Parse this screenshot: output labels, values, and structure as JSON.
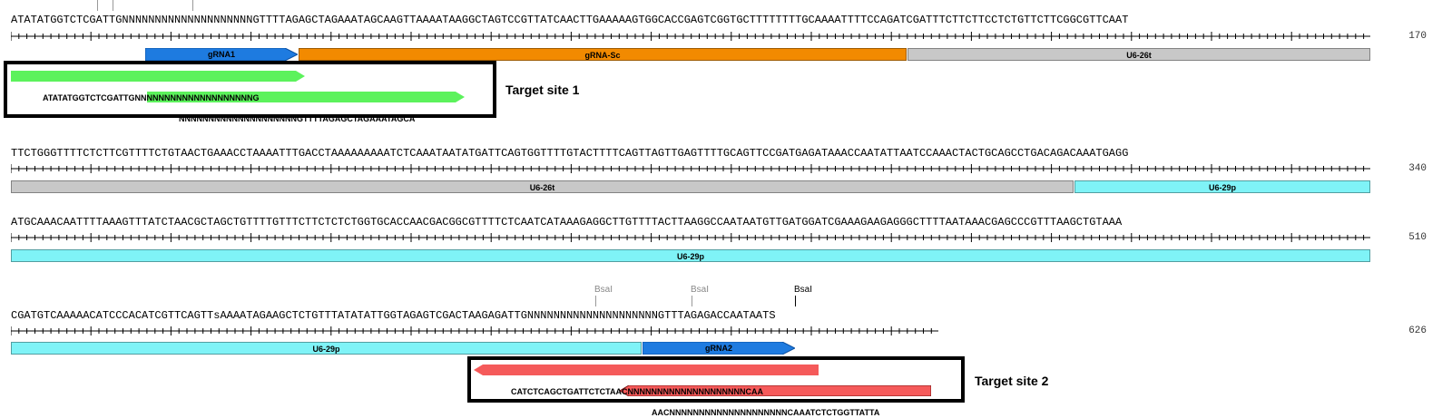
{
  "rows": [
    {
      "sequence": "ATATATGGTCTCGATTGNNNNNNNNNNNNNNNNNNNNGTTTTAGAGCTAGAAATAGCAAGTTAAAATAAGGCTAGTCCGTTATCAACTTGAAAAAGTGGCACCGAGTCGGTGCTTTTTTTTGCAAAATTTTCCAGATCGATTTCTTCTTCCTCTGTTCTTCGGCGTTCAAT",
      "position": "170",
      "features": [
        {
          "label": "gRNA1",
          "color": "#1e7be0"
        },
        {
          "label": "gRNA-Sc",
          "color": "#f28a00"
        },
        {
          "label": "U6-26t",
          "color": "#c8c8c8"
        }
      ]
    },
    {
      "sequence": "TTCTGGGTTTTCTCTTCGTTTTCTGTAACTGAAACCTAAAATTTGACCTAAAAAAAAATCTCAAATAATATGATTCAGTGGTTTTGTACTTTTCAGTTAGTTGAGTTTTGCAGTTCCGATGAGATAAACCAATATTAATCCAAACTACTGCAGCCTGACAGACAAATGAGG",
      "position": "340",
      "features": [
        {
          "label": "U6-26t",
          "color": "#c8c8c8"
        },
        {
          "label": "U6-29p",
          "color": "#7ff3f7"
        }
      ]
    },
    {
      "sequence": "ATGCAAACAATTTTAAAGTTTATCTAACGCTAGCTGTTTTGTTTCTTCTCTCTGGTGCACCAACGACGGCGTTTTCTCAATCATAAAGAGGCTTGTTTTACTTAAGGCCAATAATGTTGATGGATCGAAAGAAGAGGGCTTTTAATAAACGAGCCCGTTTAAGCTGTAAA",
      "position": "510",
      "features": [
        {
          "label": "U6-29p",
          "color": "#7ff3f7"
        }
      ]
    },
    {
      "sequence": "CGATGTCAAAAACATCCCACATCGTTCAGTTsAAAATAGAAGCTCTGTTTATATATTGGTAGAGTCGACTAAGAGATTGNNNNNNNNNNNNNNNNNNNNGTTTAGAGACCAATAATS",
      "position": "626",
      "features": [
        {
          "label": "U6-29p",
          "color": "#7ff3f7"
        },
        {
          "label": "gRNA2",
          "color": "#1e7be0"
        }
      ],
      "sites": [
        "BsaI",
        "BsaI",
        "BsaI"
      ]
    }
  ],
  "primers": {
    "site1_fwd": {
      "label": "ATATATGGTCTCGATTGNNNNNNNNNNNNNNNNNNNNG",
      "color": "#5cf25c"
    },
    "site1_rev": {
      "label": "NNNNNNNNNNNNNNNNNNNNGTTTTAGAGCTAGAAATAGCA",
      "color": "#5cf25c"
    },
    "site2_fwd": {
      "label": "CATCTCAGCTGATTCTCTAACNNNNNNNNNNNNNNNNNNNNCAA",
      "color": "#f55a5a"
    },
    "site2_rev": {
      "label": "AACNNNNNNNNNNNNNNNNNNNNCAAATCTCTGGTTATTA",
      "color": "#f55a5a"
    }
  },
  "targets": {
    "site1": "Target site 1",
    "site2": "Target site 2"
  }
}
